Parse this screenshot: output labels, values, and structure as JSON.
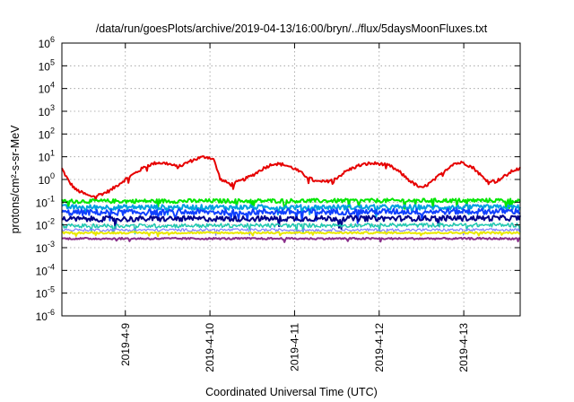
{
  "chart_data": {
    "type": "line",
    "title": "/data/run/goesPlots/archive/2019-04-13/16:00/bryn/../flux/5daysMoonFluxes.txt",
    "xlabel": "Coordinated Universal Time (UTC)",
    "ylabel": "protons/cm²-s-sr-MeV",
    "y_scale": "log",
    "ylim": [
      1e-06,
      1000000.0
    ],
    "xlim": [
      "2019-04-08 06:00",
      "2019-04-13 16:00"
    ],
    "grid": true,
    "y_ticks": [
      {
        "value": 1e-06,
        "base": "10",
        "exp": "-6"
      },
      {
        "value": 1e-05,
        "base": "10",
        "exp": "-5"
      },
      {
        "value": 0.0001,
        "base": "10",
        "exp": "-4"
      },
      {
        "value": 0.001,
        "base": "10",
        "exp": "-3"
      },
      {
        "value": 0.01,
        "base": "10",
        "exp": "-2"
      },
      {
        "value": 0.1,
        "base": "10",
        "exp": "-1"
      },
      {
        "value": 1,
        "base": "10",
        "exp": "0"
      },
      {
        "value": 10,
        "base": "10",
        "exp": "1"
      },
      {
        "value": 100,
        "base": "10",
        "exp": "2"
      },
      {
        "value": 1000,
        "base": "10",
        "exp": "3"
      },
      {
        "value": 10000,
        "base": "10",
        "exp": "4"
      },
      {
        "value": 100000,
        "base": "10",
        "exp": "5"
      },
      {
        "value": 1000000,
        "base": "10",
        "exp": "6"
      }
    ],
    "x_ticks": [
      {
        "value": "2019-04-09 00:00",
        "label": "2019-4-9"
      },
      {
        "value": "2019-04-10 00:00",
        "label": "2019-4-10"
      },
      {
        "value": "2019-04-11 00:00",
        "label": "2019-4-11"
      },
      {
        "value": "2019-04-12 00:00",
        "label": "2019-4-12"
      },
      {
        "value": "2019-04-13 00:00",
        "label": "2019-4-13"
      }
    ],
    "series": [
      {
        "color": "#e60000",
        "stroke": 2.0,
        "noise": 0.07,
        "x": [
          "2019-04-08 06:00",
          "2019-04-08 08:00",
          "2019-04-08 10:00",
          "2019-04-08 12:00",
          "2019-04-08 14:00",
          "2019-04-08 16:00",
          "2019-04-08 18:00",
          "2019-04-08 20:00",
          "2019-04-08 22:00",
          "2019-04-09 00:00",
          "2019-04-09 03:00",
          "2019-04-09 06:00",
          "2019-04-09 09:00",
          "2019-04-09 12:00",
          "2019-04-09 15:00",
          "2019-04-09 18:00",
          "2019-04-09 21:00",
          "2019-04-09 23:00",
          "2019-04-10 01:00",
          "2019-04-10 03:00",
          "2019-04-10 06:00",
          "2019-04-10 09:00",
          "2019-04-10 12:00",
          "2019-04-10 15:00",
          "2019-04-10 18:00",
          "2019-04-10 21:00",
          "2019-04-11 00:00",
          "2019-04-11 03:00",
          "2019-04-11 06:00",
          "2019-04-11 09:00",
          "2019-04-11 12:00",
          "2019-04-11 15:00",
          "2019-04-11 18:00",
          "2019-04-11 21:00",
          "2019-04-12 00:00",
          "2019-04-12 03:00",
          "2019-04-12 06:00",
          "2019-04-12 09:00",
          "2019-04-12 12:00",
          "2019-04-12 15:00",
          "2019-04-12 18:00",
          "2019-04-12 21:00",
          "2019-04-13 00:00",
          "2019-04-13 03:00",
          "2019-04-13 06:00",
          "2019-04-13 09:00",
          "2019-04-13 12:00",
          "2019-04-13 14:00",
          "2019-04-13 16:00"
        ],
        "y": [
          3.0,
          0.8,
          0.35,
          0.25,
          0.18,
          0.2,
          0.25,
          0.35,
          0.6,
          1.0,
          2.0,
          4.0,
          5.5,
          5.0,
          3.5,
          6.0,
          9.0,
          10.0,
          8.0,
          1.0,
          0.6,
          0.9,
          1.5,
          3.0,
          5.0,
          4.5,
          3.0,
          1.5,
          0.8,
          0.8,
          1.2,
          2.5,
          4.0,
          5.0,
          5.0,
          4.0,
          2.0,
          0.8,
          0.4,
          0.8,
          2.0,
          5.0,
          5.5,
          3.0,
          1.0,
          0.8,
          1.5,
          2.5,
          3.0
        ]
      },
      {
        "color": "#00e600",
        "stroke": 2.0,
        "noise": 0.09,
        "x": [
          "2019-04-08 06:00",
          "2019-04-13 16:00"
        ],
        "y": [
          0.11,
          0.12
        ]
      },
      {
        "color": "#00a0e0",
        "stroke": 2.0,
        "noise": 0.11,
        "x": [
          "2019-04-08 06:00",
          "2019-04-13 16:00"
        ],
        "y": [
          0.06,
          0.06
        ]
      },
      {
        "color": "#1040ff",
        "stroke": 2.0,
        "noise": 0.13,
        "x": [
          "2019-04-08 06:00",
          "2019-04-13 16:00"
        ],
        "y": [
          0.035,
          0.04
        ]
      },
      {
        "color": "#00008b",
        "stroke": 2.0,
        "noise": 0.12,
        "x": [
          "2019-04-08 06:00",
          "2019-04-13 16:00"
        ],
        "y": [
          0.018,
          0.02
        ]
      },
      {
        "color": "#20c8b0",
        "stroke": 1.5,
        "noise": 0.09,
        "x": [
          "2019-04-08 06:00",
          "2019-04-13 16:00"
        ],
        "y": [
          0.009,
          0.01
        ]
      },
      {
        "color": "#8080ff",
        "stroke": 1.2,
        "noise": 0.06,
        "x": [
          "2019-04-08 06:00",
          "2019-04-13 16:00"
        ],
        "y": [
          0.006,
          0.006
        ]
      },
      {
        "color": "#e8e800",
        "stroke": 2.0,
        "noise": 0.04,
        "x": [
          "2019-04-08 06:00",
          "2019-04-13 16:00"
        ],
        "y": [
          0.0045,
          0.0045
        ]
      },
      {
        "color": "#8b2f8b",
        "stroke": 2.0,
        "noise": 0.04,
        "x": [
          "2019-04-08 06:00",
          "2019-04-13 16:00"
        ],
        "y": [
          0.0025,
          0.0025
        ]
      }
    ]
  }
}
